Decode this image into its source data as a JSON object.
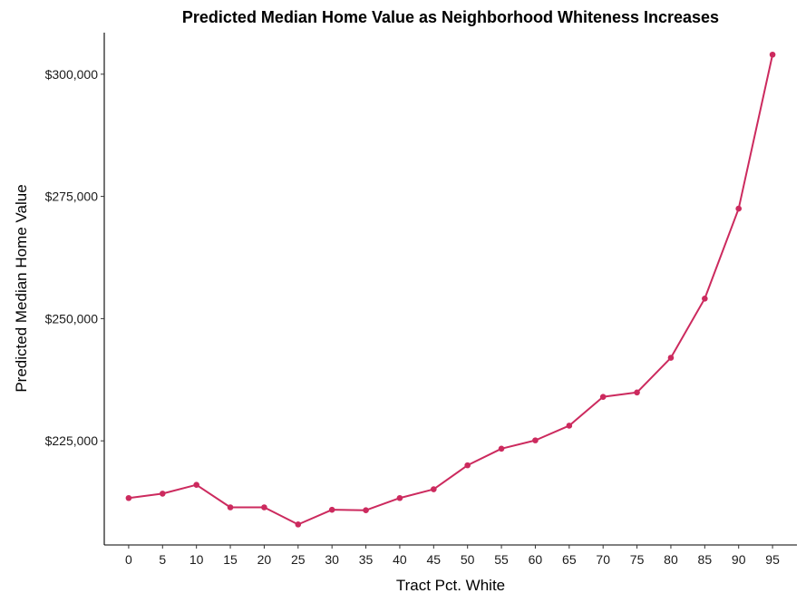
{
  "chart_data": {
    "type": "line",
    "title": "Predicted Median Home Value as Neighborhood Whiteness Increases",
    "xlabel": "Tract Pct. White",
    "ylabel": "Predicted Median Home Value",
    "x": [
      0,
      5,
      10,
      15,
      20,
      25,
      30,
      35,
      40,
      45,
      50,
      55,
      60,
      65,
      70,
      75,
      80,
      85,
      90,
      95
    ],
    "x_tick_labels": [
      "0",
      "5",
      "10",
      "15",
      "20",
      "25",
      "30",
      "35",
      "40",
      "45",
      "50",
      "55",
      "60",
      "65",
      "70",
      "75",
      "80",
      "85",
      "90",
      "95"
    ],
    "series": [
      {
        "values": [
          213300,
          214200,
          216000,
          211400,
          211400,
          207900,
          210900,
          210800,
          213300,
          215100,
          220000,
          223400,
          225100,
          228100,
          234000,
          234900,
          242000,
          254100,
          272500,
          304000
        ],
        "color": "#cc2a5e"
      }
    ],
    "y_ticks": [
      225000,
      250000,
      275000,
      300000
    ],
    "y_tick_labels": [
      "$225,000",
      "$250,000",
      "$275,000",
      "$300,000"
    ],
    "ylim": [
      203700,
      308500
    ],
    "xlim": [
      -3.6,
      98.6
    ],
    "grid": false,
    "legend": false
  }
}
